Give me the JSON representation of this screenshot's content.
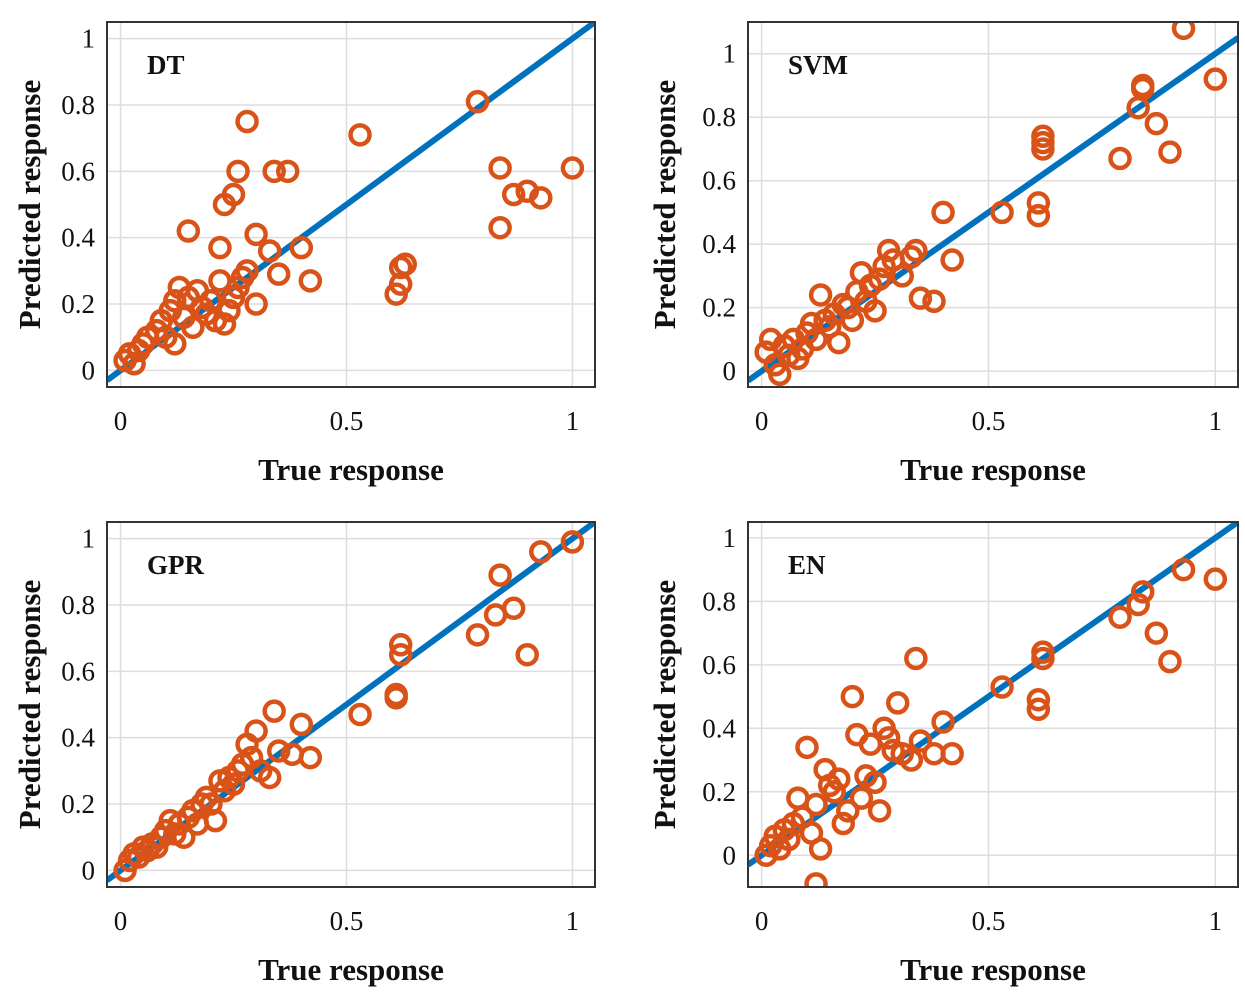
{
  "colors": {
    "point": "#d95319",
    "line": "#0072bd"
  },
  "chart_data": [
    {
      "type": "scatter",
      "title": "DT",
      "xlabel": "True response",
      "ylabel": "Predicted response",
      "xlim": [
        -0.03,
        1.05
      ],
      "ylim": [
        -0.05,
        1.05
      ],
      "xticks": [
        0,
        0.5,
        1
      ],
      "xtick_labels": [
        "0",
        "0.5",
        "1"
      ],
      "yticks": [
        0,
        0.2,
        0.4,
        0.6,
        0.8,
        1
      ],
      "ytick_labels": [
        "0",
        "0.2",
        "0.4",
        "0.6",
        "0.8",
        "1"
      ],
      "reference_line": {
        "x": [
          -0.03,
          1.05
        ],
        "y": [
          -0.03,
          1.05
        ]
      },
      "points": [
        [
          0.01,
          0.03
        ],
        [
          0.02,
          0.05
        ],
        [
          0.03,
          0.02
        ],
        [
          0.04,
          0.06
        ],
        [
          0.05,
          0.08
        ],
        [
          0.06,
          0.1
        ],
        [
          0.08,
          0.12
        ],
        [
          0.09,
          0.15
        ],
        [
          0.1,
          0.1
        ],
        [
          0.11,
          0.18
        ],
        [
          0.12,
          0.08
        ],
        [
          0.12,
          0.21
        ],
        [
          0.13,
          0.25
        ],
        [
          0.14,
          0.16
        ],
        [
          0.15,
          0.22
        ],
        [
          0.16,
          0.13
        ],
        [
          0.17,
          0.24
        ],
        [
          0.18,
          0.19
        ],
        [
          0.19,
          0.17
        ],
        [
          0.2,
          0.21
        ],
        [
          0.21,
          0.15
        ],
        [
          0.22,
          0.27
        ],
        [
          0.23,
          0.14
        ],
        [
          0.24,
          0.18
        ],
        [
          0.25,
          0.22
        ],
        [
          0.26,
          0.25
        ],
        [
          0.27,
          0.28
        ],
        [
          0.28,
          0.3
        ],
        [
          0.15,
          0.42
        ],
        [
          0.22,
          0.37
        ],
        [
          0.23,
          0.5
        ],
        [
          0.25,
          0.53
        ],
        [
          0.26,
          0.6
        ],
        [
          0.28,
          0.75
        ],
        [
          0.3,
          0.41
        ],
        [
          0.33,
          0.36
        ],
        [
          0.34,
          0.6
        ],
        [
          0.37,
          0.6
        ],
        [
          0.3,
          0.2
        ],
        [
          0.35,
          0.29
        ],
        [
          0.4,
          0.37
        ],
        [
          0.42,
          0.27
        ],
        [
          0.53,
          0.71
        ],
        [
          0.79,
          0.81
        ],
        [
          0.84,
          0.61
        ],
        [
          0.84,
          0.43
        ],
        [
          0.87,
          0.53
        ],
        [
          0.9,
          0.54
        ],
        [
          0.93,
          0.52
        ],
        [
          1.0,
          0.61
        ],
        [
          0.61,
          0.23
        ],
        [
          0.62,
          0.26
        ],
        [
          0.62,
          0.31
        ],
        [
          0.63,
          0.32
        ]
      ]
    },
    {
      "type": "scatter",
      "title": "SVM",
      "xlabel": "True response",
      "ylabel": "Predicted response",
      "xlim": [
        -0.03,
        1.05
      ],
      "ylim": [
        -0.05,
        1.1
      ],
      "xticks": [
        0,
        0.5,
        1
      ],
      "xtick_labels": [
        "0",
        "0.5",
        "1"
      ],
      "yticks": [
        0,
        0.2,
        0.4,
        0.6,
        0.8,
        1
      ],
      "ytick_labels": [
        "0",
        "0.2",
        "0.4",
        "0.6",
        "0.8",
        "1"
      ],
      "reference_line": {
        "x": [
          -0.03,
          1.05
        ],
        "y": [
          -0.03,
          1.05
        ]
      },
      "points": [
        [
          0.01,
          0.06
        ],
        [
          0.02,
          0.1
        ],
        [
          0.03,
          0.02
        ],
        [
          0.04,
          -0.01
        ],
        [
          0.05,
          0.08
        ],
        [
          0.06,
          0.05
        ],
        [
          0.07,
          0.1
        ],
        [
          0.08,
          0.04
        ],
        [
          0.09,
          0.07
        ],
        [
          0.1,
          0.12
        ],
        [
          0.11,
          0.15
        ],
        [
          0.12,
          0.1
        ],
        [
          0.13,
          0.24
        ],
        [
          0.14,
          0.16
        ],
        [
          0.15,
          0.14
        ],
        [
          0.16,
          0.18
        ],
        [
          0.17,
          0.09
        ],
        [
          0.18,
          0.21
        ],
        [
          0.19,
          0.2
        ],
        [
          0.2,
          0.16
        ],
        [
          0.21,
          0.25
        ],
        [
          0.22,
          0.31
        ],
        [
          0.23,
          0.22
        ],
        [
          0.24,
          0.27
        ],
        [
          0.25,
          0.19
        ],
        [
          0.26,
          0.29
        ],
        [
          0.27,
          0.33
        ],
        [
          0.28,
          0.38
        ],
        [
          0.29,
          0.35
        ],
        [
          0.31,
          0.3
        ],
        [
          0.33,
          0.36
        ],
        [
          0.34,
          0.38
        ],
        [
          0.35,
          0.23
        ],
        [
          0.38,
          0.22
        ],
        [
          0.4,
          0.5
        ],
        [
          0.42,
          0.35
        ],
        [
          0.53,
          0.5
        ],
        [
          0.61,
          0.49
        ],
        [
          0.61,
          0.53
        ],
        [
          0.62,
          0.7
        ],
        [
          0.62,
          0.72
        ],
        [
          0.62,
          0.74
        ],
        [
          0.79,
          0.67
        ],
        [
          0.83,
          0.83
        ],
        [
          0.84,
          0.89
        ],
        [
          0.84,
          0.9
        ],
        [
          0.87,
          0.78
        ],
        [
          0.9,
          0.69
        ],
        [
          0.93,
          1.08
        ],
        [
          1.0,
          0.92
        ]
      ]
    },
    {
      "type": "scatter",
      "title": "GPR",
      "xlabel": "True response",
      "ylabel": "Predicted response",
      "xlim": [
        -0.03,
        1.05
      ],
      "ylim": [
        -0.05,
        1.05
      ],
      "xticks": [
        0,
        0.5,
        1
      ],
      "xtick_labels": [
        "0",
        "0.5",
        "1"
      ],
      "yticks": [
        0,
        0.2,
        0.4,
        0.6,
        0.8,
        1
      ],
      "ytick_labels": [
        "0",
        "0.2",
        "0.4",
        "0.6",
        "0.8",
        "1"
      ],
      "reference_line": {
        "x": [
          -0.03,
          1.05
        ],
        "y": [
          -0.03,
          1.05
        ]
      },
      "points": [
        [
          0.01,
          0.0
        ],
        [
          0.02,
          0.03
        ],
        [
          0.03,
          0.05
        ],
        [
          0.04,
          0.04
        ],
        [
          0.05,
          0.07
        ],
        [
          0.06,
          0.06
        ],
        [
          0.07,
          0.08
        ],
        [
          0.08,
          0.07
        ],
        [
          0.09,
          0.1
        ],
        [
          0.1,
          0.12
        ],
        [
          0.11,
          0.15
        ],
        [
          0.12,
          0.11
        ],
        [
          0.13,
          0.14
        ],
        [
          0.14,
          0.1
        ],
        [
          0.15,
          0.16
        ],
        [
          0.16,
          0.18
        ],
        [
          0.17,
          0.14
        ],
        [
          0.18,
          0.2
        ],
        [
          0.19,
          0.22
        ],
        [
          0.2,
          0.2
        ],
        [
          0.21,
          0.15
        ],
        [
          0.22,
          0.27
        ],
        [
          0.23,
          0.24
        ],
        [
          0.24,
          0.28
        ],
        [
          0.25,
          0.26
        ],
        [
          0.26,
          0.3
        ],
        [
          0.27,
          0.32
        ],
        [
          0.28,
          0.38
        ],
        [
          0.29,
          0.34
        ],
        [
          0.3,
          0.42
        ],
        [
          0.31,
          0.3
        ],
        [
          0.33,
          0.28
        ],
        [
          0.34,
          0.48
        ],
        [
          0.35,
          0.36
        ],
        [
          0.38,
          0.35
        ],
        [
          0.4,
          0.44
        ],
        [
          0.42,
          0.34
        ],
        [
          0.53,
          0.47
        ],
        [
          0.61,
          0.52
        ],
        [
          0.61,
          0.53
        ],
        [
          0.62,
          0.65
        ],
        [
          0.62,
          0.68
        ],
        [
          0.79,
          0.71
        ],
        [
          0.83,
          0.77
        ],
        [
          0.84,
          0.89
        ],
        [
          0.87,
          0.79
        ],
        [
          0.9,
          0.65
        ],
        [
          0.93,
          0.96
        ],
        [
          1.0,
          0.99
        ]
      ]
    },
    {
      "type": "scatter",
      "title": "EN",
      "xlabel": "True response",
      "ylabel": "Predicted response",
      "xlim": [
        -0.03,
        1.05
      ],
      "ylim": [
        -0.1,
        1.05
      ],
      "xticks": [
        0,
        0.5,
        1
      ],
      "xtick_labels": [
        "0",
        "0.5",
        "1"
      ],
      "yticks": [
        0,
        0.2,
        0.4,
        0.6,
        0.8,
        1
      ],
      "ytick_labels": [
        "0",
        "0.2",
        "0.4",
        "0.6",
        "0.8",
        "1"
      ],
      "reference_line": {
        "x": [
          -0.03,
          1.05
        ],
        "y": [
          -0.03,
          1.05
        ]
      },
      "points": [
        [
          0.01,
          0.0
        ],
        [
          0.02,
          0.03
        ],
        [
          0.03,
          0.06
        ],
        [
          0.04,
          0.02
        ],
        [
          0.05,
          0.08
        ],
        [
          0.06,
          0.05
        ],
        [
          0.07,
          0.1
        ],
        [
          0.08,
          0.18
        ],
        [
          0.09,
          0.12
        ],
        [
          0.1,
          0.34
        ],
        [
          0.11,
          0.07
        ],
        [
          0.12,
          0.16
        ],
        [
          0.12,
          -0.09
        ],
        [
          0.13,
          0.02
        ],
        [
          0.14,
          0.27
        ],
        [
          0.15,
          0.22
        ],
        [
          0.16,
          0.2
        ],
        [
          0.17,
          0.24
        ],
        [
          0.18,
          0.1
        ],
        [
          0.19,
          0.14
        ],
        [
          0.2,
          0.5
        ],
        [
          0.21,
          0.38
        ],
        [
          0.22,
          0.18
        ],
        [
          0.23,
          0.25
        ],
        [
          0.24,
          0.35
        ],
        [
          0.25,
          0.23
        ],
        [
          0.26,
          0.14
        ],
        [
          0.27,
          0.4
        ],
        [
          0.28,
          0.37
        ],
        [
          0.29,
          0.33
        ],
        [
          0.3,
          0.48
        ],
        [
          0.31,
          0.32
        ],
        [
          0.33,
          0.3
        ],
        [
          0.34,
          0.62
        ],
        [
          0.35,
          0.36
        ],
        [
          0.38,
          0.32
        ],
        [
          0.4,
          0.42
        ],
        [
          0.42,
          0.32
        ],
        [
          0.53,
          0.53
        ],
        [
          0.61,
          0.46
        ],
        [
          0.61,
          0.49
        ],
        [
          0.62,
          0.62
        ],
        [
          0.62,
          0.64
        ],
        [
          0.79,
          0.75
        ],
        [
          0.83,
          0.79
        ],
        [
          0.84,
          0.83
        ],
        [
          0.87,
          0.7
        ],
        [
          0.9,
          0.61
        ],
        [
          0.93,
          0.9
        ],
        [
          1.0,
          0.87
        ]
      ]
    }
  ]
}
